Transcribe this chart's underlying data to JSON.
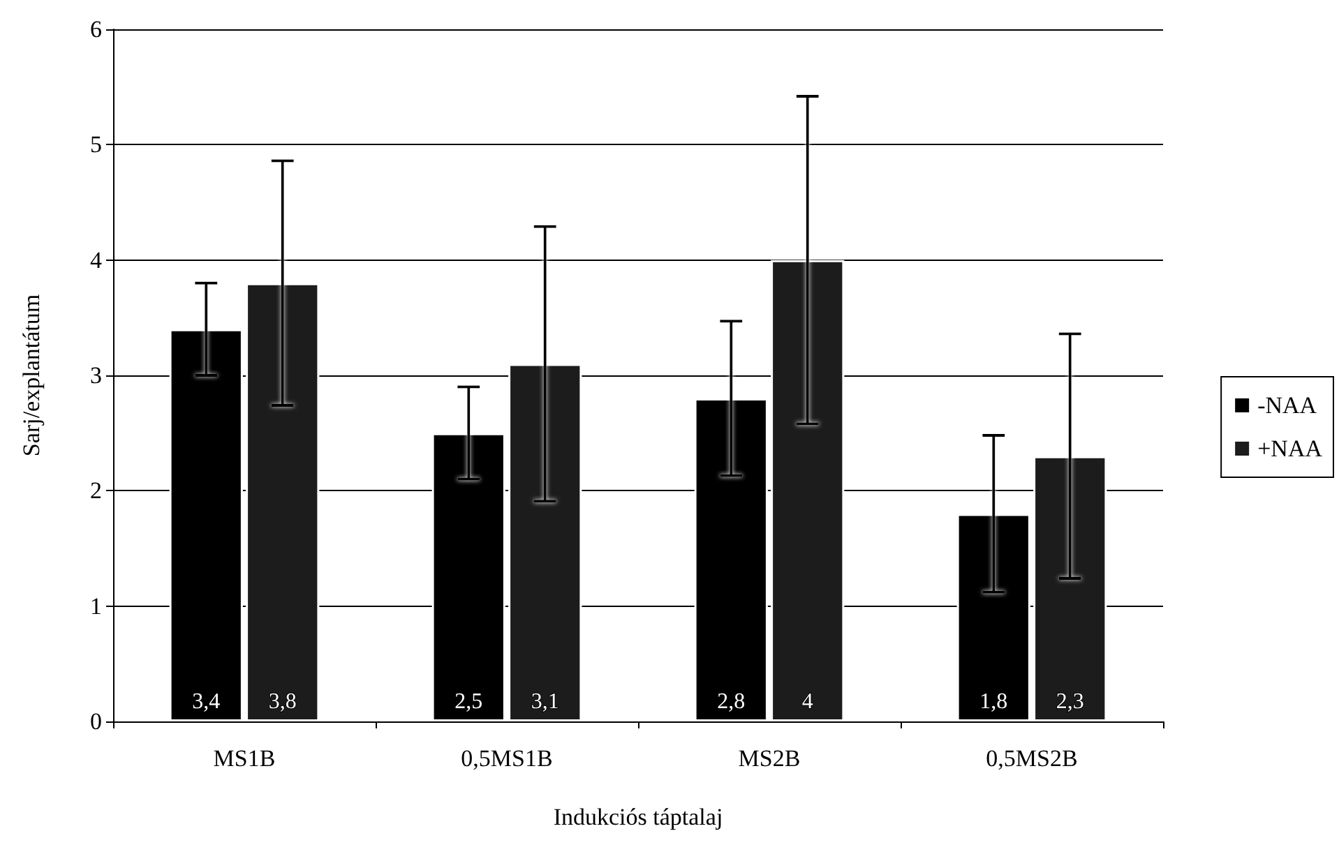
{
  "chart_data": {
    "type": "bar",
    "xlabel": "Indukciós táptalaj",
    "ylabel": "Sarj/explantátum",
    "categories": [
      "MS1B",
      "0,5MS1B",
      "MS2B",
      "0,5MS2B"
    ],
    "series": [
      {
        "name": "-NAA",
        "color": "#000000",
        "values": [
          3.4,
          2.5,
          2.8,
          1.8
        ],
        "errors": [
          0.4,
          0.4,
          0.67,
          0.68
        ],
        "value_labels": [
          "3,4",
          "2,5",
          "2,8",
          "1,8"
        ]
      },
      {
        "name": "+NAA",
        "color": "#1c1c1c",
        "values": [
          3.8,
          3.1,
          4,
          2.3
        ],
        "errors": [
          1.06,
          1.19,
          1.42,
          1.06
        ],
        "value_labels": [
          "3,8",
          "3,1",
          "4",
          "2,3"
        ]
      }
    ],
    "ylim": [
      0,
      6
    ],
    "yticks": [
      0,
      1,
      2,
      3,
      4,
      5,
      6
    ],
    "grid": "y",
    "legend": "right"
  }
}
